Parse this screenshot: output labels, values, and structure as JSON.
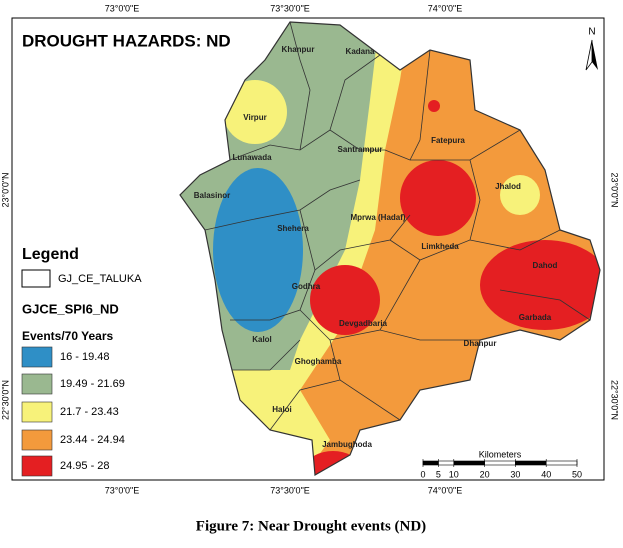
{
  "title": "DROUGHT HAZARDS: ND",
  "north": "N",
  "graticule": {
    "top": [
      "73°0'0\"E",
      "73°30'0\"E",
      "74°0'0\"E"
    ],
    "bottom": [
      "73°0'0\"E",
      "73°30'0\"E",
      "74°0'0\"E"
    ],
    "left": [
      "23°0'0\"N",
      "22°30'0\"N"
    ],
    "right": [
      "23°0'0\"N",
      "22°30'0\"N"
    ]
  },
  "legend": {
    "heading": "Legend",
    "boundary": "GJ_CE_TALUKA",
    "layer": "GJCE_SPI6_ND",
    "unit": "Events/70 Years",
    "classes": [
      {
        "label": "16 - 19.48",
        "color": "#2f8fc6"
      },
      {
        "label": "19.49 - 21.69",
        "color": "#9ab890"
      },
      {
        "label": "21.7 - 23.43",
        "color": "#f7f27a"
      },
      {
        "label": "23.44 - 24.94",
        "color": "#f39a3c"
      },
      {
        "label": "24.95 - 28",
        "color": "#e41f22"
      }
    ]
  },
  "talukas": [
    "Khanpur",
    "Kadana",
    "Virpur",
    "Santrampur",
    "Fatepura",
    "Lunawada",
    "Balasinor",
    "Jhalod",
    "Mprwa (Hadaf)",
    "Shehera",
    "Limkheda",
    "Dahod",
    "Godhra",
    "Devgadbaria",
    "Garbada",
    "Kalol",
    "Ghoghamba",
    "Dhanpur",
    "Haloi",
    "Jambughoda"
  ],
  "scale": {
    "title": "Kilometers",
    "ticks": [
      0,
      5,
      10,
      20,
      30,
      40,
      50
    ]
  },
  "caption": "Figure 7: Near Drought events (ND)"
}
